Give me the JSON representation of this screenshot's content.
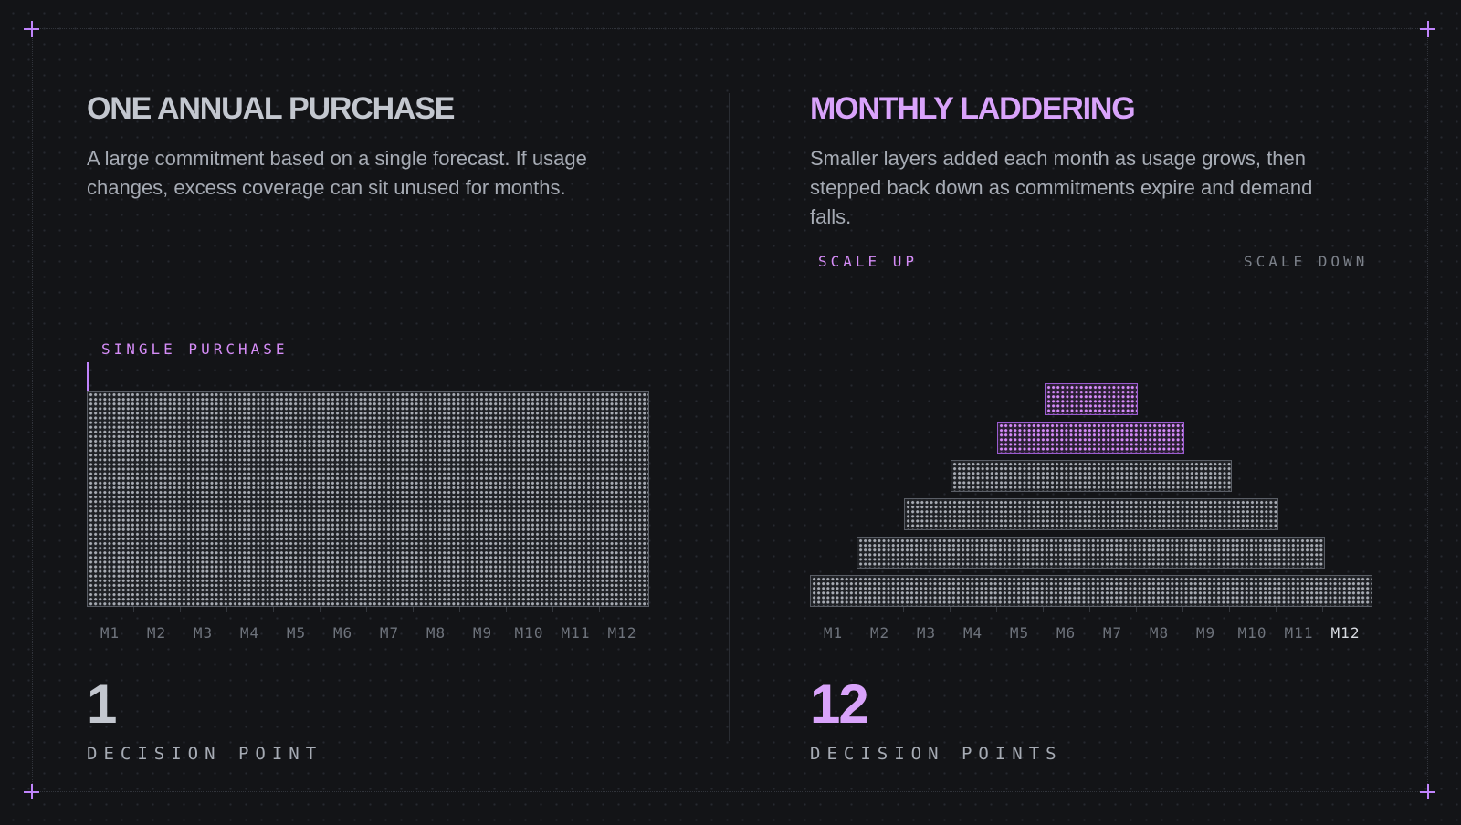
{
  "left_panel": {
    "title": "ONE ANNUAL PURCHASE",
    "description": "A large commitment based on a single forecast. If usage changes, excess coverage can sit unused for months.",
    "marker_label": "SINGLE PURCHASE",
    "months": [
      "M1",
      "M2",
      "M3",
      "M4",
      "M5",
      "M6",
      "M7",
      "M8",
      "M9",
      "M10",
      "M11",
      "M12"
    ],
    "decision_count": "1",
    "decision_label": "DECISION POINT"
  },
  "right_panel": {
    "title": "MONTHLY LADDERING",
    "description": "Smaller layers added each month as usage grows, then stepped back down as commitments expire and demand falls.",
    "scale_up_label": "SCALE UP",
    "scale_down_label": "SCALE DOWN",
    "months": [
      "M1",
      "M2",
      "M3",
      "M4",
      "M5",
      "M6",
      "M7",
      "M8",
      "M9",
      "M10",
      "M11",
      "M12"
    ],
    "highlighted_month": "M12",
    "layers": [
      {
        "start_month": 1,
        "end_month": 12,
        "highlight": false
      },
      {
        "start_month": 2,
        "end_month": 11,
        "highlight": false
      },
      {
        "start_month": 3,
        "end_month": 10,
        "highlight": false
      },
      {
        "start_month": 4,
        "end_month": 9,
        "highlight": false
      },
      {
        "start_month": 5,
        "end_month": 8,
        "highlight": true
      },
      {
        "start_month": 6,
        "end_month": 7,
        "highlight": true
      }
    ],
    "decision_count": "12",
    "decision_label": "DECISION POINTS"
  },
  "colors": {
    "accent": "#c084fc",
    "accent_light": "#d9a3fb",
    "background": "#131417",
    "text": "#a6abb4"
  }
}
